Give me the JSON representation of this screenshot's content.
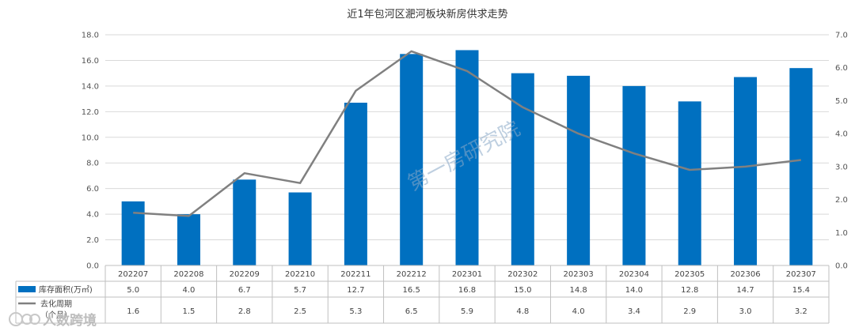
{
  "chart_data": {
    "type": "bar",
    "title": "近1年包河区淝河板块新房供求走势",
    "categories": [
      "202207",
      "202208",
      "202209",
      "202210",
      "202211",
      "202212",
      "202301",
      "202302",
      "202303",
      "202304",
      "202305",
      "202306",
      "202307"
    ],
    "series": [
      {
        "name": "库存面积(万㎡)",
        "type": "bar",
        "axis": "left",
        "color": "#0070c0",
        "values": [
          5.0,
          4.0,
          6.7,
          5.7,
          12.7,
          16.5,
          16.8,
          15.0,
          14.8,
          14.0,
          12.8,
          14.7,
          15.4
        ]
      },
      {
        "name": "去化周期（个月）",
        "type": "line",
        "axis": "right",
        "color": "#808080",
        "values": [
          1.6,
          1.5,
          2.8,
          2.5,
          5.3,
          6.5,
          5.9,
          4.8,
          4.0,
          3.4,
          2.9,
          3.0,
          3.2
        ]
      }
    ],
    "left_axis": {
      "min": 0,
      "max": 18,
      "step": 2,
      "tick_labels": [
        "0.0",
        "2.0",
        "4.0",
        "6.0",
        "8.0",
        "10.0",
        "12.0",
        "14.0",
        "16.0",
        "18.0"
      ]
    },
    "right_axis": {
      "min": 0,
      "max": 7,
      "step": 1,
      "tick_labels": [
        "0.0",
        "1.0",
        "2.0",
        "3.0",
        "4.0",
        "5.0",
        "6.0",
        "7.0"
      ]
    },
    "grid": true,
    "legend": "data-table-below",
    "table_rows": [
      {
        "label": "库存面积(万㎡)",
        "cells": [
          "5.0",
          "4.0",
          "6.7",
          "5.7",
          "12.7",
          "16.5",
          "16.8",
          "15.0",
          "14.8",
          "14.0",
          "12.8",
          "14.7",
          "15.4"
        ]
      },
      {
        "label_line1": "去化周期",
        "label_line2": "（个月）",
        "cells": [
          "1.6",
          "1.5",
          "2.8",
          "2.5",
          "5.3",
          "6.5",
          "5.9",
          "4.8",
          "4.0",
          "3.4",
          "2.9",
          "3.0",
          "3.2"
        ]
      }
    ],
    "watermark": "第一房研究院",
    "logo_text": "人数跨境"
  }
}
